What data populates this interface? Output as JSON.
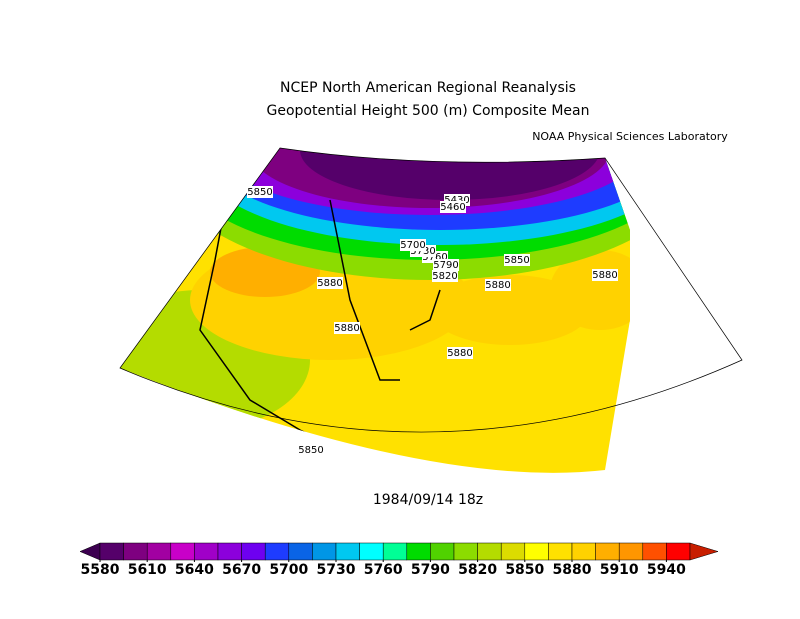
{
  "title": "NCEP North American Regional Reanalysis",
  "subtitle": "Geopotential Height 500 (m) Composite Mean",
  "credit": "NOAA Physical Sciences Laboratory",
  "date": "1984/09/14 18z",
  "contour_labels": [
    "5850",
    "5880",
    "5880",
    "5850",
    "5850",
    "5880",
    "5880",
    "5880",
    "5760",
    "5790",
    "5820",
    "5730",
    "5700",
    "5430",
    "5460"
  ],
  "colorbar": {
    "lim": [
      5580,
      5955
    ],
    "ticks": [
      5580,
      5610,
      5640,
      5670,
      5700,
      5730,
      5760,
      5790,
      5820,
      5850,
      5880,
      5910,
      5940
    ],
    "under_color": "#3c0050",
    "over_color": "#c81e00",
    "colors": [
      "#55006a",
      "#7e0080",
      "#a200a2",
      "#c800c8",
      "#a000c8",
      "#8c00dc",
      "#6e00f0",
      "#1e3cff",
      "#0a64e6",
      "#0096e6",
      "#00c8f0",
      "#00ffff",
      "#00ff96",
      "#00dc00",
      "#50d200",
      "#8cdc00",
      "#b4dc00",
      "#dcdc00",
      "#ffff00",
      "#ffe100",
      "#ffd200",
      "#ffaf00",
      "#ff9600",
      "#ff5000",
      "#ff0000"
    ]
  }
}
